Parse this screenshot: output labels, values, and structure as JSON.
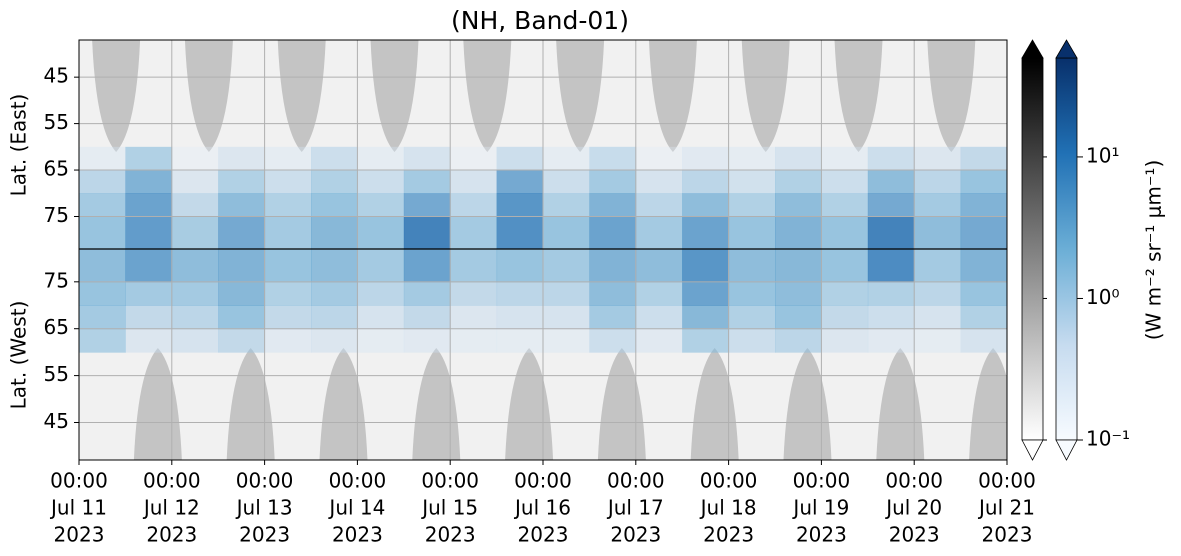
{
  "chart_data": {
    "type": "heatmap",
    "title": "(NH, Band-01)",
    "ylabel_east": "Lat. (East)",
    "ylabel_west": "Lat. (West)",
    "xlim": [
      "2023-07-11T00:00",
      "2023-07-21T00:00"
    ],
    "xticks": [
      {
        "value": "2023-07-11T00:00",
        "label": [
          "00:00",
          "Jul 11",
          "2023"
        ]
      },
      {
        "value": "2023-07-12T00:00",
        "label": [
          "00:00",
          "Jul 12",
          "2023"
        ]
      },
      {
        "value": "2023-07-13T00:00",
        "label": [
          "00:00",
          "Jul 13",
          "2023"
        ]
      },
      {
        "value": "2023-07-14T00:00",
        "label": [
          "00:00",
          "Jul 14",
          "2023"
        ]
      },
      {
        "value": "2023-07-15T00:00",
        "label": [
          "00:00",
          "Jul 15",
          "2023"
        ]
      },
      {
        "value": "2023-07-16T00:00",
        "label": [
          "00:00",
          "Jul 16",
          "2023"
        ]
      },
      {
        "value": "2023-07-17T00:00",
        "label": [
          "00:00",
          "Jul 17",
          "2023"
        ]
      },
      {
        "value": "2023-07-18T00:00",
        "label": [
          "00:00",
          "Jul 18",
          "2023"
        ]
      },
      {
        "value": "2023-07-19T00:00",
        "label": [
          "00:00",
          "Jul 19",
          "2023"
        ]
      },
      {
        "value": "2023-07-20T00:00",
        "label": [
          "00:00",
          "Jul 20",
          "2023"
        ]
      },
      {
        "value": "2023-07-21T00:00",
        "label": [
          "00:00",
          "Jul 21",
          "2023"
        ]
      }
    ],
    "ylim_east": [
      37,
      82
    ],
    "yticks_east": [
      45,
      55,
      65,
      75
    ],
    "ylim_west": [
      37,
      82
    ],
    "yticks_west": [
      75,
      65,
      55,
      45
    ],
    "grid": true,
    "x": [
      "2023-07-11T00:00",
      "2023-07-11T12:00",
      "2023-07-12T00:00",
      "2023-07-12T12:00",
      "2023-07-13T00:00",
      "2023-07-13T12:00",
      "2023-07-14T00:00",
      "2023-07-14T12:00",
      "2023-07-15T00:00",
      "2023-07-15T12:00",
      "2023-07-16T00:00",
      "2023-07-16T12:00",
      "2023-07-17T00:00",
      "2023-07-17T12:00",
      "2023-07-18T00:00",
      "2023-07-18T12:00",
      "2023-07-19T00:00",
      "2023-07-19T12:00",
      "2023-07-20T00:00",
      "2023-07-20T12:00"
    ],
    "lat_edges": [
      60,
      65,
      70,
      75,
      82
    ],
    "east": {
      "values": [
        [
          0.3,
          1.5,
          0.2,
          0.5,
          0.3,
          0.8,
          0.3,
          0.6,
          0.2,
          0.8,
          0.3,
          0.9,
          0.2,
          0.4,
          0.3,
          0.6,
          0.3,
          0.8,
          0.5,
          1.0
        ],
        [
          1.2,
          4.0,
          0.5,
          1.5,
          0.8,
          1.5,
          0.8,
          2.0,
          0.6,
          5.0,
          0.8,
          2.0,
          0.6,
          1.2,
          0.7,
          1.5,
          0.8,
          3.0,
          1.2,
          2.5
        ],
        [
          2.0,
          6.0,
          1.0,
          3.0,
          1.5,
          2.5,
          1.5,
          5.0,
          1.2,
          8.0,
          1.5,
          4.0,
          1.2,
          3.0,
          1.5,
          3.0,
          1.5,
          5.0,
          2.0,
          4.0
        ],
        [
          2.5,
          7.0,
          1.8,
          5.0,
          2.0,
          3.5,
          2.5,
          12.0,
          2.0,
          9.0,
          2.5,
          6.0,
          2.0,
          6.0,
          2.5,
          4.0,
          2.5,
          12.0,
          3.0,
          5.0
        ]
      ]
    },
    "west": {
      "values": [
        [
          1.5,
          0.5,
          0.6,
          1.0,
          0.4,
          0.5,
          0.3,
          0.4,
          0.3,
          0.3,
          0.3,
          0.8,
          0.4,
          1.5,
          0.8,
          1.2,
          0.5,
          0.4,
          0.3,
          0.6
        ],
        [
          2.0,
          1.0,
          1.2,
          2.5,
          1.0,
          1.2,
          0.6,
          1.0,
          0.5,
          0.6,
          0.6,
          2.0,
          0.8,
          3.5,
          1.5,
          2.5,
          1.0,
          0.8,
          0.6,
          1.5
        ],
        [
          2.5,
          2.0,
          2.0,
          3.5,
          1.5,
          2.0,
          1.2,
          2.0,
          1.0,
          1.2,
          1.2,
          3.0,
          1.5,
          6.0,
          2.5,
          3.0,
          1.5,
          1.5,
          1.2,
          2.5
        ],
        [
          3.0,
          6.0,
          3.0,
          4.0,
          2.5,
          3.0,
          2.0,
          6.0,
          2.0,
          2.5,
          2.0,
          4.0,
          3.0,
          8.0,
          3.0,
          3.5,
          2.5,
          10.0,
          2.0,
          4.0
        ]
      ]
    },
    "colorbar": {
      "log": true,
      "clim": [
        0.1,
        50
      ],
      "ticks": [
        {
          "value": 0.1,
          "label": "10⁻¹"
        },
        {
          "value": 1,
          "label": "10⁰"
        },
        {
          "value": 10,
          "label": "10¹"
        }
      ],
      "label": "(W m⁻² sr⁻¹ μm⁻¹)",
      "colors": [
        "#f7fbff",
        "#c6dbef",
        "#6baed6",
        "#2171b5",
        "#08306b"
      ],
      "grey_colors": [
        "#ffffff",
        "#000000"
      ]
    }
  }
}
